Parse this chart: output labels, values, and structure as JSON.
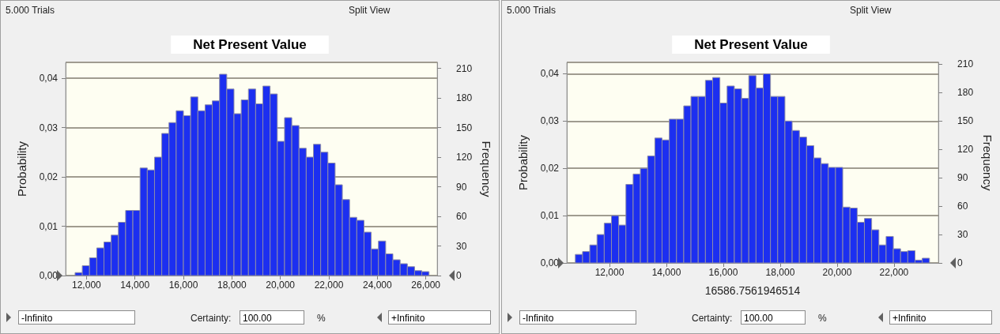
{
  "chart_data": [
    {
      "type": "histogram",
      "title": "Net Present Value",
      "ylabel": "Probability",
      "y2label": "Frequency",
      "grid": "y",
      "bins": [
        11530,
        11828,
        12126,
        12424,
        12722,
        13020,
        13318,
        13616,
        13914,
        14212,
        14510,
        14808,
        15106,
        15404,
        15702,
        16000,
        16298,
        16596,
        16894,
        17192,
        17490,
        17788,
        18086,
        18384,
        18682,
        18980,
        19278,
        19576,
        19874,
        20172,
        20470,
        20768,
        21066,
        21364,
        21662,
        21960,
        22258,
        22556,
        22854,
        23152,
        23450,
        23748,
        24046,
        24344,
        24642,
        24940,
        25238,
        25536,
        25834,
        26132
      ],
      "series": [
        {
          "color": "#1c2ff0",
          "axis": "y2",
          "values": [
            3,
            10,
            18,
            28,
            34,
            41,
            54,
            66,
            66,
            109,
            107,
            120,
            144,
            155,
            167,
            162,
            181,
            167,
            173,
            177,
            204,
            189,
            164,
            178,
            189,
            174,
            192,
            184,
            136,
            160,
            152,
            129,
            120,
            133,
            125,
            114,
            92,
            77,
            59,
            56,
            44,
            27,
            35,
            22,
            16,
            12,
            9,
            5,
            4
          ]
        }
      ],
      "xlim": [
        11140,
        26470
      ],
      "xticks": [
        {
          "value": 12000,
          "label": "12,000"
        },
        {
          "value": 14000,
          "label": "14,000"
        },
        {
          "value": 16000,
          "label": "16,000"
        },
        {
          "value": 18000,
          "label": "18,000"
        },
        {
          "value": 20000,
          "label": "20,000"
        },
        {
          "value": 22000,
          "label": "22,000"
        },
        {
          "value": 24000,
          "label": "24,000"
        },
        {
          "value": 26000,
          "label": "26,000"
        }
      ],
      "ylim": [
        0,
        0.0432
      ],
      "yticks": [
        {
          "value": 0,
          "label": "0,00"
        },
        {
          "value": 0.01,
          "label": "0,01"
        },
        {
          "value": 0.02,
          "label": "0,02"
        },
        {
          "value": 0.03,
          "label": "0,03"
        },
        {
          "value": 0.04,
          "label": "0,04"
        }
      ],
      "y2lim": [
        0,
        216
      ],
      "y2ticks": [
        0,
        30,
        60,
        90,
        120,
        150,
        180,
        210
      ],
      "annotations": [
        "5.000 Trials",
        "Split View",
        "-Infinito",
        "Certainty:",
        "100.00",
        "%",
        "+Infinito"
      ]
    },
    {
      "type": "histogram",
      "title": "Net Present Value",
      "xlabel": "16586.7561946514",
      "ylabel": "Probability",
      "y2label": "Frequency",
      "grid": "y",
      "bins": [
        10800,
        11054,
        11308,
        11562,
        11816,
        12070,
        12324,
        12578,
        12832,
        13086,
        13340,
        13594,
        13848,
        14102,
        14356,
        14610,
        14864,
        15118,
        15372,
        15626,
        15880,
        16134,
        16388,
        16642,
        16896,
        17150,
        17404,
        17658,
        17912,
        18166,
        18420,
        18674,
        18928,
        19182,
        19436,
        19690,
        19944,
        20198,
        20452,
        20706,
        20960,
        21214,
        21468,
        21722,
        21976,
        22230,
        22484,
        22738,
        22992,
        23246
      ],
      "series": [
        {
          "color": "#1c2ff0",
          "axis": "y2",
          "values": [
            9,
            12,
            19,
            30,
            42,
            50,
            40,
            83,
            94,
            100,
            113,
            132,
            130,
            152,
            152,
            166,
            176,
            176,
            193,
            196,
            169,
            187,
            184,
            174,
            198,
            185,
            200,
            176,
            176,
            150,
            140,
            133,
            124,
            111,
            105,
            101,
            101,
            59,
            58,
            43,
            47,
            35,
            19,
            28,
            15,
            12,
            13,
            3,
            5
          ]
        }
      ],
      "xlim": [
        10500,
        23560
      ],
      "xticks": [
        {
          "value": 12000,
          "label": "12,000"
        },
        {
          "value": 14000,
          "label": "14,000"
        },
        {
          "value": 16000,
          "label": "16,000"
        },
        {
          "value": 18000,
          "label": "18,000"
        },
        {
          "value": 20000,
          "label": "20,000"
        },
        {
          "value": 22000,
          "label": "22,000"
        }
      ],
      "ylim": [
        0,
        0.0424
      ],
      "yticks": [
        {
          "value": 0,
          "label": "0,00"
        },
        {
          "value": 0.01,
          "label": "0,01"
        },
        {
          "value": 0.02,
          "label": "0,02"
        },
        {
          "value": 0.03,
          "label": "0,03"
        },
        {
          "value": 0.04,
          "label": "0,04"
        }
      ],
      "y2lim": [
        0,
        212
      ],
      "y2ticks": [
        0,
        30,
        60,
        90,
        120,
        150,
        180,
        210
      ],
      "annotations": [
        "5.000 Trials",
        "Split View",
        "-Infinito",
        "Certainty:",
        "100.00",
        "%",
        "+Infinito"
      ]
    }
  ]
}
